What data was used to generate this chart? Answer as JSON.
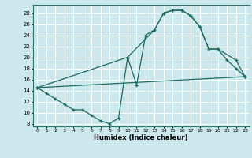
{
  "xlabel": "Humidex (Indice chaleur)",
  "bg_color": "#cce8ec",
  "grid_color": "#ffffff",
  "line_color": "#1a6b5e",
  "xlim": [
    -0.5,
    23.5
  ],
  "ylim": [
    7.5,
    29.5
  ],
  "xticks": [
    0,
    1,
    2,
    3,
    4,
    5,
    6,
    7,
    8,
    9,
    10,
    11,
    12,
    13,
    14,
    15,
    16,
    17,
    18,
    19,
    20,
    21,
    22,
    23
  ],
  "yticks": [
    8,
    10,
    12,
    14,
    16,
    18,
    20,
    22,
    24,
    26,
    28
  ],
  "line1_x": [
    0,
    1,
    2,
    3,
    4,
    5,
    6,
    7,
    8,
    9,
    10,
    11,
    12,
    13,
    14,
    15,
    16,
    17,
    18,
    19,
    20,
    21,
    22,
    23
  ],
  "line1_y": [
    14.5,
    13.5,
    12.5,
    11.5,
    10.5,
    10.5,
    9.5,
    8.5,
    8.0,
    9.0,
    20.0,
    15.0,
    24.0,
    25.0,
    28.0,
    28.5,
    28.5,
    27.5,
    25.5,
    21.5,
    21.5,
    19.5,
    18.0,
    16.5
  ],
  "line2_x": [
    0,
    10,
    13,
    14,
    15,
    16,
    17,
    18,
    19,
    20,
    22,
    23
  ],
  "line2_y": [
    14.5,
    20.0,
    25.0,
    28.0,
    28.5,
    28.5,
    27.5,
    25.5,
    21.5,
    21.5,
    19.5,
    16.5
  ],
  "line3_x": [
    0,
    23
  ],
  "line3_y": [
    14.5,
    16.5
  ]
}
